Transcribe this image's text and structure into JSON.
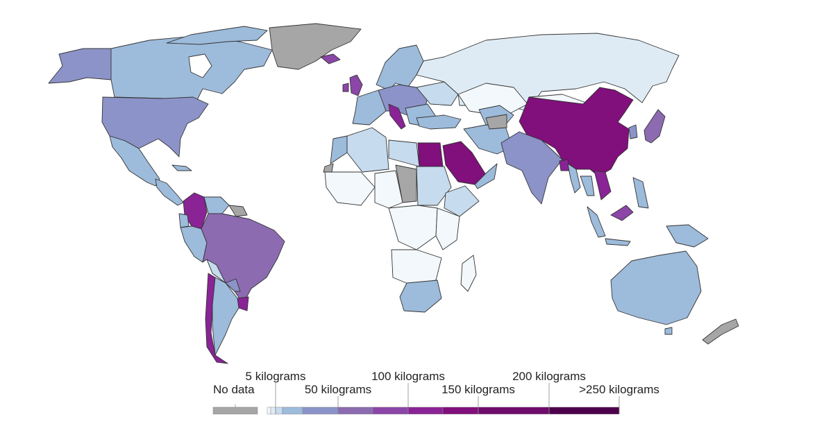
{
  "colors": {
    "no_data": "#a6a6a6",
    "bin_0_2": "#f2f8fb",
    "bin_2_5": "#dfebf4",
    "bin_5_20": "#c6dbed",
    "bin_20_50": "#9dbbdb",
    "bin_50_75": "#8c93c8",
    "bin_75_100": "#8c6bb1",
    "bin_100_125": "#8b46a8",
    "bin_125_150": "#8a2396",
    "bin_150_200": "#810f7c",
    "bin_200_250": "#6e0b6b",
    "bin_250_plus": "#4d004b"
  },
  "legend": {
    "no_data": "No data",
    "labels": [
      "5 kilograms",
      "50 kilograms",
      "100 kilograms",
      "150 kilograms",
      "200 kilograms",
      ">250 kilograms"
    ]
  }
}
